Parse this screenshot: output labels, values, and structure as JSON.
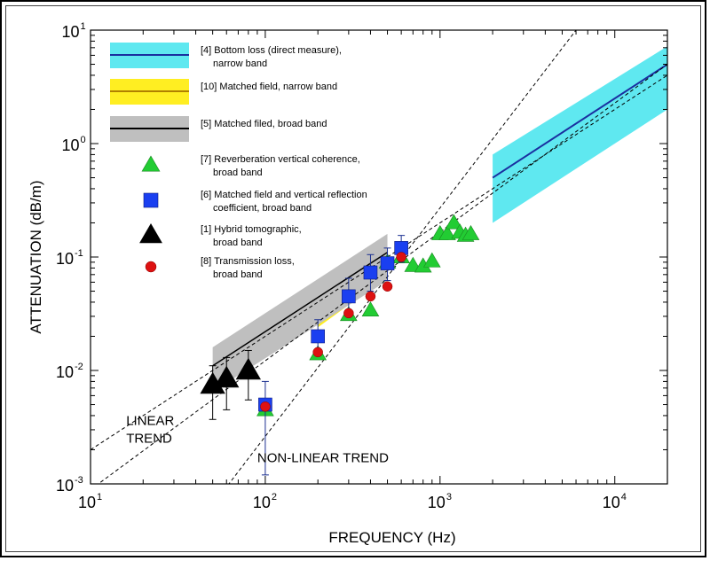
{
  "chart_data": {
    "type": "scatter",
    "xlabel": "FREQUENCY (Hz)",
    "ylabel": "ATTENUATION (dB/m)",
    "xscale": "log",
    "yscale": "log",
    "xlim": [
      10,
      20000
    ],
    "ylim": [
      0.001,
      10
    ],
    "x_ticks": [
      {
        "base": "10",
        "exp": "1"
      },
      {
        "base": "10",
        "exp": "2"
      },
      {
        "base": "10",
        "exp": "3"
      },
      {
        "base": "10",
        "exp": "4"
      }
    ],
    "y_ticks": [
      {
        "base": "10",
        "exp": "-3"
      },
      {
        "base": "10",
        "exp": "-2"
      },
      {
        "base": "10",
        "exp": "-1"
      },
      {
        "base": "10",
        "exp": "0"
      },
      {
        "base": "10",
        "exp": "1"
      }
    ],
    "legend": [
      {
        "label": "[4] Bottom loss (direct measure),",
        "label2": "narrow band",
        "kind": "band",
        "fill": "#5fe8f0",
        "line": "#1a2fa0"
      },
      {
        "label": "[10] Matched field, narrow band",
        "label2": "",
        "kind": "band",
        "fill": "#ffee22",
        "line": "#b08000"
      },
      {
        "label": "[5] Matched filed, broad band",
        "label2": "",
        "kind": "band",
        "fill": "#bfbfbf",
        "line": "#000000"
      },
      {
        "label": "[7] Reverberation vertical coherence,",
        "label2": "broad band",
        "kind": "triangle",
        "color": "#22cc33"
      },
      {
        "label": "[6] Matched field and vertical reflection",
        "label2": "coefficient, broad band",
        "kind": "square",
        "color": "#1a3ff0"
      },
      {
        "label": "[1] Hybrid tomographic,",
        "label2": "broad band",
        "kind": "triangle",
        "color": "#000000"
      },
      {
        "label": "[8] Transmission loss,",
        "label2": "broad band",
        "kind": "circle",
        "color": "#dd1111"
      }
    ],
    "bands": [
      {
        "name": "[4] Bottom loss (direct measure), narrow band",
        "fill": "#5fe8f0",
        "line": "#1a2fa0",
        "x": [
          2000,
          20000
        ],
        "center": [
          0.5,
          5.0
        ],
        "lower": [
          0.2,
          2.0
        ],
        "upper": [
          0.8,
          7.2
        ]
      },
      {
        "name": "[10] Matched field, narrow band",
        "fill": "#ffee22",
        "line": "#b08000",
        "x": [
          200,
          400
        ],
        "center": [
          0.033,
          0.07
        ],
        "lower": [
          0.024,
          0.052
        ],
        "upper": [
          0.046,
          0.095
        ]
      },
      {
        "name": "[5] Matched filed, broad band",
        "fill": "#bfbfbf",
        "line": "#000000",
        "x": [
          50,
          500
        ],
        "center": [
          0.011,
          0.11
        ],
        "lower": [
          0.0065,
          0.062
        ],
        "upper": [
          0.016,
          0.16
        ]
      }
    ],
    "series": [
      {
        "name": "[7] Reverberation vertical coherence, broad band",
        "marker": "triangle",
        "color": "#22cc33",
        "points": [
          {
            "x": 100,
            "y": 0.0045
          },
          {
            "x": 200,
            "y": 0.014
          },
          {
            "x": 300,
            "y": 0.031
          },
          {
            "x": 400,
            "y": 0.034
          },
          {
            "x": 500,
            "y": 0.09
          },
          {
            "x": 600,
            "y": 0.1
          },
          {
            "x": 700,
            "y": 0.084
          },
          {
            "x": 800,
            "y": 0.083
          },
          {
            "x": 900,
            "y": 0.092
          },
          {
            "x": 1000,
            "y": 0.16
          },
          {
            "x": 1100,
            "y": 0.16
          },
          {
            "x": 1200,
            "y": 0.2
          },
          {
            "x": 1300,
            "y": 0.165
          },
          {
            "x": 1400,
            "y": 0.155
          },
          {
            "x": 1500,
            "y": 0.16
          }
        ]
      },
      {
        "name": "[6] Matched field and vertical reflection coefficient, broad band",
        "marker": "square",
        "color": "#1a3ff0",
        "points": [
          {
            "x": 100,
            "y": 0.005,
            "err": [
              0.0012,
              0.008
            ]
          },
          {
            "x": 200,
            "y": 0.02,
            "err": [
              0.014,
              0.028
            ]
          },
          {
            "x": 300,
            "y": 0.045,
            "err": [
              0.03,
              0.065
            ]
          },
          {
            "x": 400,
            "y": 0.073,
            "err": [
              0.05,
              0.105
            ]
          },
          {
            "x": 500,
            "y": 0.088,
            "err": [
              0.062,
              0.12
            ]
          },
          {
            "x": 600,
            "y": 0.12,
            "err": [
              0.09,
              0.155
            ]
          }
        ]
      },
      {
        "name": "[1] Hybrid tomographic, broad band",
        "marker": "triangle",
        "color": "#000000",
        "points": [
          {
            "x": 50,
            "y": 0.0075,
            "err": [
              0.0037,
              0.011
            ]
          },
          {
            "x": 60,
            "y": 0.0085,
            "err": [
              0.0045,
              0.013
            ]
          },
          {
            "x": 80,
            "y": 0.01,
            "err": [
              0.0055,
              0.015
            ]
          }
        ]
      },
      {
        "name": "[8] Transmission loss, broad band",
        "marker": "circle",
        "color": "#dd1111",
        "points": [
          {
            "x": 100,
            "y": 0.0048
          },
          {
            "x": 200,
            "y": 0.0145
          },
          {
            "x": 300,
            "y": 0.032
          },
          {
            "x": 400,
            "y": 0.045
          },
          {
            "x": 500,
            "y": 0.055
          },
          {
            "x": 600,
            "y": 0.1
          }
        ]
      }
    ],
    "trend_lines": [
      {
        "label": "LINEAR TREND",
        "x": [
          10,
          20000
        ],
        "y": [
          0.002,
          4.0
        ],
        "style": "dashed"
      },
      {
        "label": "",
        "x": [
          10,
          20000
        ],
        "y": [
          0.00089,
          5.0
        ],
        "style": "dashed"
      },
      {
        "label": "NON-LINEAR TREND",
        "x": [
          50,
          6000
        ],
        "y": [
          0.00065,
          10
        ],
        "style": "dashed"
      }
    ],
    "annotations": [
      {
        "text": "LINEAR",
        "x": 16,
        "y": 0.0033
      },
      {
        "text": "TREND",
        "x": 16,
        "y": 0.0023
      },
      {
        "text": "NON-LINEAR TREND",
        "x": 90,
        "y": 0.00155
      }
    ]
  }
}
